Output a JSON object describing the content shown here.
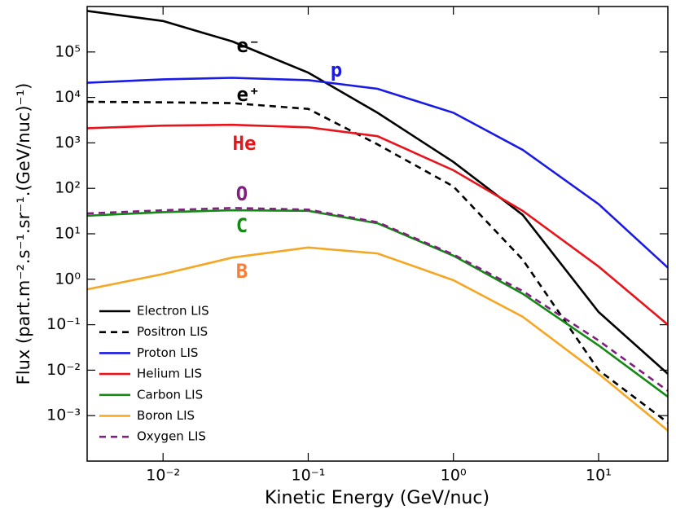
{
  "chart_data": {
    "type": "line",
    "xlabel": "Kinetic Energy (GeV/nuc)",
    "ylabel": "Flux (part.m⁻².s⁻¹.sr⁻¹.(GeV/nuc)⁻¹)",
    "xscale": "log",
    "yscale": "log",
    "xlim": [
      0.003,
      30
    ],
    "ylim": [
      0.0001,
      1000000
    ],
    "xticks": [
      {
        "value": 0.01,
        "label": "10⁻²"
      },
      {
        "value": 0.1,
        "label": "10⁻¹"
      },
      {
        "value": 1,
        "label": "10⁰"
      },
      {
        "value": 10,
        "label": "10¹"
      }
    ],
    "yticks": [
      {
        "value": 0.001,
        "label": "10⁻³"
      },
      {
        "value": 0.01,
        "label": "10⁻²"
      },
      {
        "value": 0.1,
        "label": "10⁻¹"
      },
      {
        "value": 1,
        "label": "10⁰"
      },
      {
        "value": 10,
        "label": "10¹"
      },
      {
        "value": 100,
        "label": "10²"
      },
      {
        "value": 1000,
        "label": "10³"
      },
      {
        "value": 10000,
        "label": "10⁴"
      },
      {
        "value": 100000,
        "label": "10⁵"
      }
    ],
    "legend": "lower left",
    "x": [
      0.003,
      0.01,
      0.03,
      0.1,
      0.3,
      1,
      3,
      10,
      30
    ],
    "series": [
      {
        "name": "Electron LIS",
        "color": "#000000",
        "linestyle": "solid",
        "values": [
          800000,
          480000,
          170000,
          35000,
          4600,
          380,
          26,
          0.19,
          0.0083
        ]
      },
      {
        "name": "Positron LIS",
        "color": "#000000",
        "linestyle": "dashed",
        "values": [
          8000,
          7800,
          7500,
          5600,
          930,
          110,
          2.7,
          0.01,
          0.0007
        ]
      },
      {
        "name": "Proton LIS",
        "color": "#1a1ae6",
        "linestyle": "solid",
        "values": [
          21000,
          25000,
          27000,
          24000,
          15500,
          4600,
          700,
          45,
          1.8
        ]
      },
      {
        "name": "Helium LIS",
        "color": "#e8141c",
        "linestyle": "solid",
        "values": [
          2100,
          2400,
          2500,
          2200,
          1400,
          250,
          32,
          1.9,
          0.1
        ]
      },
      {
        "name": "Carbon LIS",
        "color": "#138a13",
        "linestyle": "solid",
        "values": [
          25,
          30,
          33,
          32,
          17,
          3.3,
          0.48,
          0.035,
          0.0026
        ]
      },
      {
        "name": "Boron LIS",
        "color": "#f5a623",
        "linestyle": "solid",
        "values": [
          0.6,
          1.3,
          3,
          5,
          3.7,
          0.95,
          0.15,
          0.0083,
          0.00047
        ]
      },
      {
        "name": "Oxygen LIS",
        "color": "#7f1f7f",
        "linestyle": "dashed",
        "values": [
          28,
          33,
          37,
          34,
          18,
          3.5,
          0.55,
          0.045,
          0.0035
        ]
      }
    ],
    "annotations": [
      {
        "text": "e⁻",
        "color": "#000000"
      },
      {
        "text": "p",
        "color": "#1a1ae6"
      },
      {
        "text": "e⁺",
        "color": "#000000"
      },
      {
        "text": "He",
        "color": "#e8141c"
      },
      {
        "text": "O",
        "color": "#7f1f7f"
      },
      {
        "text": "C",
        "color": "#138a13"
      },
      {
        "text": "B",
        "color": "#f57f3a"
      }
    ]
  }
}
